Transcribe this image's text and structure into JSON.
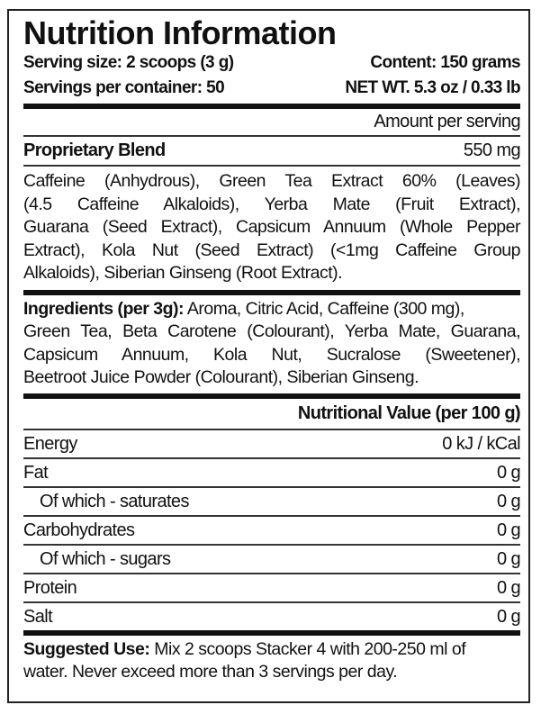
{
  "title": "Nutrition Information",
  "serving_size": "Serving size: 2 scoops (3 g)",
  "content": "Content: 150 grams",
  "servings_per_container": "Servings per container: 50",
  "net_wt": "NET WT. 5.3 oz / 0.33 lb",
  "amount_per_serving": "Amount per serving",
  "blend": {
    "label": "Proprietary Blend",
    "amount": "550 mg",
    "lines": [
      "Caffeine (Anhydrous), Green Tea Extract 60% (Leaves)",
      "(4.5 Caffeine Alkaloids), Yerba Mate (Fruit Extract),",
      "Guarana (Seed Extract), Capsicum Annuum (Whole Pepper",
      "Extract), Kola Nut (Seed Extract) (<1mg Caffeine Group",
      "Alkaloids), Siberian Ginseng (Root Extract)."
    ]
  },
  "ingredients": {
    "label": "Ingredients (per 3g):",
    "first_line": " Aroma, Citric Acid, Caffeine (300 mg),",
    "lines": [
      "Green Tea, Beta Carotene (Colourant), Yerba Mate, Guarana,",
      "Capsicum Annuum, Kola Nut, Sucralose (Sweetener),",
      "Beetroot Juice Powder (Colourant), Siberian Ginseng."
    ]
  },
  "nutrition": {
    "header": "Nutritional Value (per 100 g)",
    "rows": [
      {
        "label": "Energy",
        "value": "0 kJ / kCal"
      },
      {
        "label": "Fat",
        "value": "0 g"
      },
      {
        "label": "Of which - saturates",
        "value": "0 g"
      },
      {
        "label": "Carbohydrates",
        "value": "0 g"
      },
      {
        "label": "Of which - sugars",
        "value": "0 g"
      },
      {
        "label": "Protein",
        "value": "0 g"
      },
      {
        "label": "Salt",
        "value": "0 g"
      }
    ]
  },
  "suggested_use": {
    "label": "Suggested Use:",
    "first_line": " Mix 2 scoops Stacker 4 with 200-250 ml of",
    "second_line": "water. Never exceed more than 3 servings per day."
  }
}
